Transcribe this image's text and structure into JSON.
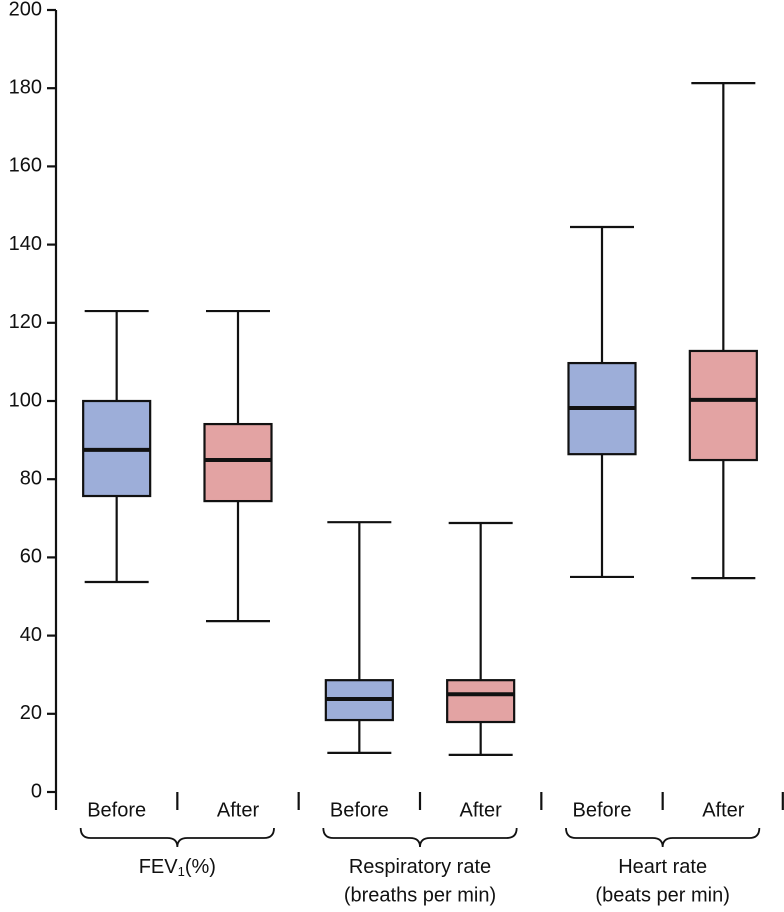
{
  "chart_data": {
    "type": "box",
    "ylim": [
      0,
      200
    ],
    "yticks": [
      0,
      20,
      40,
      60,
      80,
      100,
      120,
      140,
      160,
      180,
      200
    ],
    "groups": [
      {
        "label": "FEV",
        "label_subscript": "1",
        "label_suffix": "(%)",
        "boxes": [
          {
            "name": "Before",
            "color": "#9daed9",
            "whislo": 53.7,
            "q1": 75.7,
            "med": 87.5,
            "q3": 100,
            "whishi": 123
          },
          {
            "name": "After",
            "color": "#e3a3a3",
            "whislo": 43.7,
            "q1": 74.4,
            "med": 84.9,
            "q3": 94.1,
            "whishi": 123
          }
        ]
      },
      {
        "label": "Respiratory rate",
        "label_line2": "(breaths per min)",
        "boxes": [
          {
            "name": "Before",
            "color": "#9daed9",
            "whislo": 10,
            "q1": 18.4,
            "med": 23.8,
            "q3": 28.6,
            "whishi": 69
          },
          {
            "name": "After",
            "color": "#e3a3a3",
            "whislo": 9.5,
            "q1": 17.9,
            "med": 25,
            "q3": 28.6,
            "whishi": 68.8
          }
        ]
      },
      {
        "label": "Heart rate",
        "label_line2": "(beats per min)",
        "boxes": [
          {
            "name": "Before",
            "color": "#9daed9",
            "whislo": 55,
            "q1": 86.4,
            "med": 98.2,
            "q3": 109.7,
            "whishi": 144.5
          },
          {
            "name": "After",
            "color": "#e3a3a3",
            "whislo": 54.7,
            "q1": 84.9,
            "med": 100.3,
            "q3": 112.8,
            "whishi": 181.3
          }
        ]
      }
    ]
  }
}
